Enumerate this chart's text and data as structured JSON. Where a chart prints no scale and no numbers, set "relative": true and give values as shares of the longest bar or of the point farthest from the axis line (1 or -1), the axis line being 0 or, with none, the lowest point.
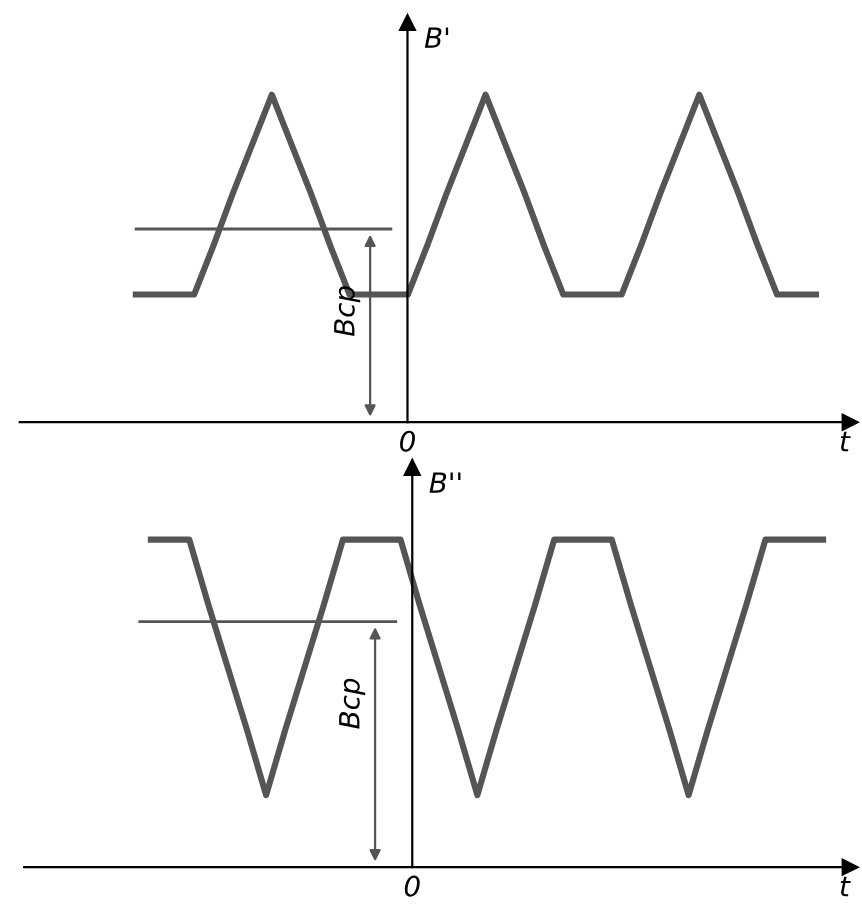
{
  "chart_data": [
    {
      "type": "line",
      "relative": true,
      "ylabel": "B'",
      "xlabel": "t",
      "categories": [
        null,
        null,
        null,
        null,
        null,
        null,
        null,
        null,
        null,
        null,
        null,
        null,
        null,
        null,
        null,
        null,
        null,
        null,
        null,
        null,
        null,
        null,
        null,
        null,
        null,
        null,
        null,
        null,
        null,
        null,
        null,
        null,
        null,
        null,
        null,
        null
      ],
      "series": [
        {
          "color": "#555555",
          "values": [
            0.39,
            0.39,
            0.39,
            0.39,
            0.54,
            0.7,
            0.85,
            1,
            0.85,
            0.7,
            0.54,
            0.39,
            0.39,
            0.39,
            0.39,
            0.54,
            0.7,
            0.85,
            1,
            0.85,
            0.7,
            0.54,
            0.39,
            0.39,
            0.39,
            0.39,
            0.54,
            0.7,
            0.85,
            1,
            0.85,
            0.7,
            0.54,
            0.39,
            0.39,
            0.39
          ]
        }
      ],
      "annotations": [
        "0"
      ],
      "ref_lines": [
        {
          "axis": "y",
          "value": 0.59,
          "label": "Bср"
        }
      ],
      "marker": "none",
      "line_style": "solid"
    },
    {
      "type": "line",
      "relative": true,
      "ylabel": "B''",
      "xlabel": "t",
      "categories": [
        null,
        null,
        null,
        null,
        null,
        null,
        null,
        null,
        null,
        null,
        null,
        null,
        null,
        null,
        null,
        null,
        null,
        null,
        null,
        null,
        null,
        null,
        null,
        null,
        null,
        null,
        null,
        null,
        null,
        null,
        null,
        null,
        null,
        null,
        null,
        null
      ],
      "series": [
        {
          "color": "#555555",
          "values": [
            1,
            1,
            1,
            0.8,
            0.61,
            0.42,
            0.22,
            0.42,
            0.61,
            0.8,
            1,
            1,
            1,
            1,
            0.8,
            0.61,
            0.42,
            0.22,
            0.42,
            0.61,
            0.8,
            1,
            1,
            1,
            1,
            0.8,
            0.61,
            0.42,
            0.22,
            0.42,
            0.61,
            0.8,
            1,
            1,
            1,
            1
          ]
        }
      ],
      "annotations": [
        "0"
      ],
      "ref_lines": [
        {
          "axis": "y",
          "value": 0.75,
          "label": "Bср"
        }
      ],
      "marker": "none",
      "line_style": "solid"
    }
  ]
}
